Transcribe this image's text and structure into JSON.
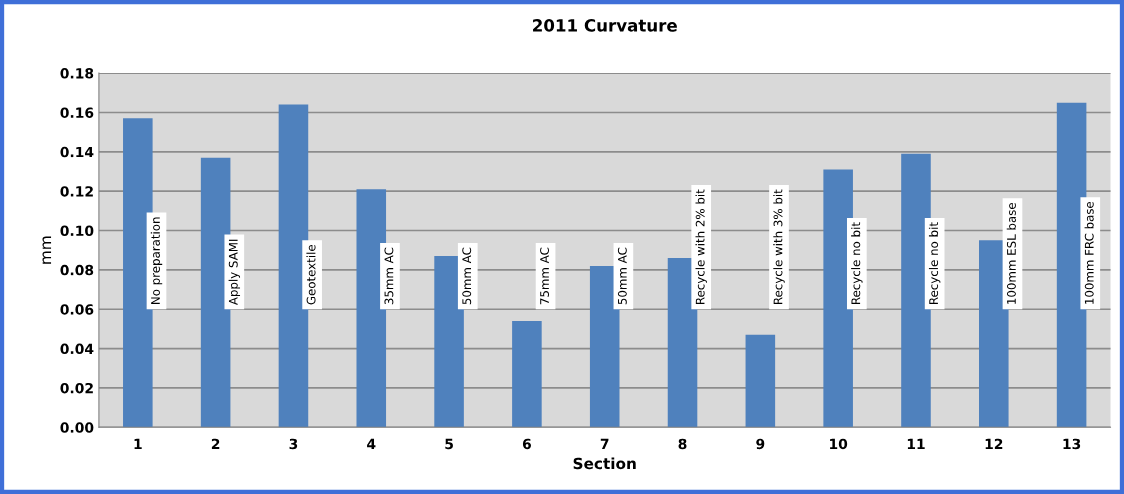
{
  "chart_data": {
    "type": "bar",
    "title": "2011 Curvature",
    "xlabel": "Section",
    "ylabel": "mm",
    "categories": [
      "1",
      "2",
      "3",
      "4",
      "5",
      "6",
      "7",
      "8",
      "9",
      "10",
      "11",
      "12",
      "13"
    ],
    "values": [
      0.157,
      0.137,
      0.164,
      0.121,
      0.087,
      0.054,
      0.082,
      0.086,
      0.047,
      0.131,
      0.139,
      0.095,
      0.165
    ],
    "color": "#4f81bd",
    "ylim": [
      0,
      0.18
    ],
    "yticks": [
      {
        "value": 0,
        "label": "0.00"
      },
      {
        "value": 0.02,
        "label": "0.02"
      },
      {
        "value": 0.04,
        "label": "0.04"
      },
      {
        "value": 0.06,
        "label": "0.06"
      },
      {
        "value": 0.08,
        "label": "0.08"
      },
      {
        "value": 0.1,
        "label": "0.10"
      },
      {
        "value": 0.12,
        "label": "0.12"
      },
      {
        "value": 0.14,
        "label": "0.14"
      },
      {
        "value": 0.16,
        "label": "0.16"
      },
      {
        "value": 0.18,
        "label": "0.18"
      }
    ],
    "grid": "y",
    "legend": false,
    "annotations": [
      "No preparation",
      "Apply SAMI",
      "Geotextile",
      "35mm AC",
      "50mm AC",
      "75mm AC",
      "50mm AC",
      "Recycle with 2% bit",
      "Recycle with 3% bit",
      "Recycle no bit",
      "Recycle no bit",
      "100mm ESL base",
      "100mm FRC base"
    ]
  }
}
